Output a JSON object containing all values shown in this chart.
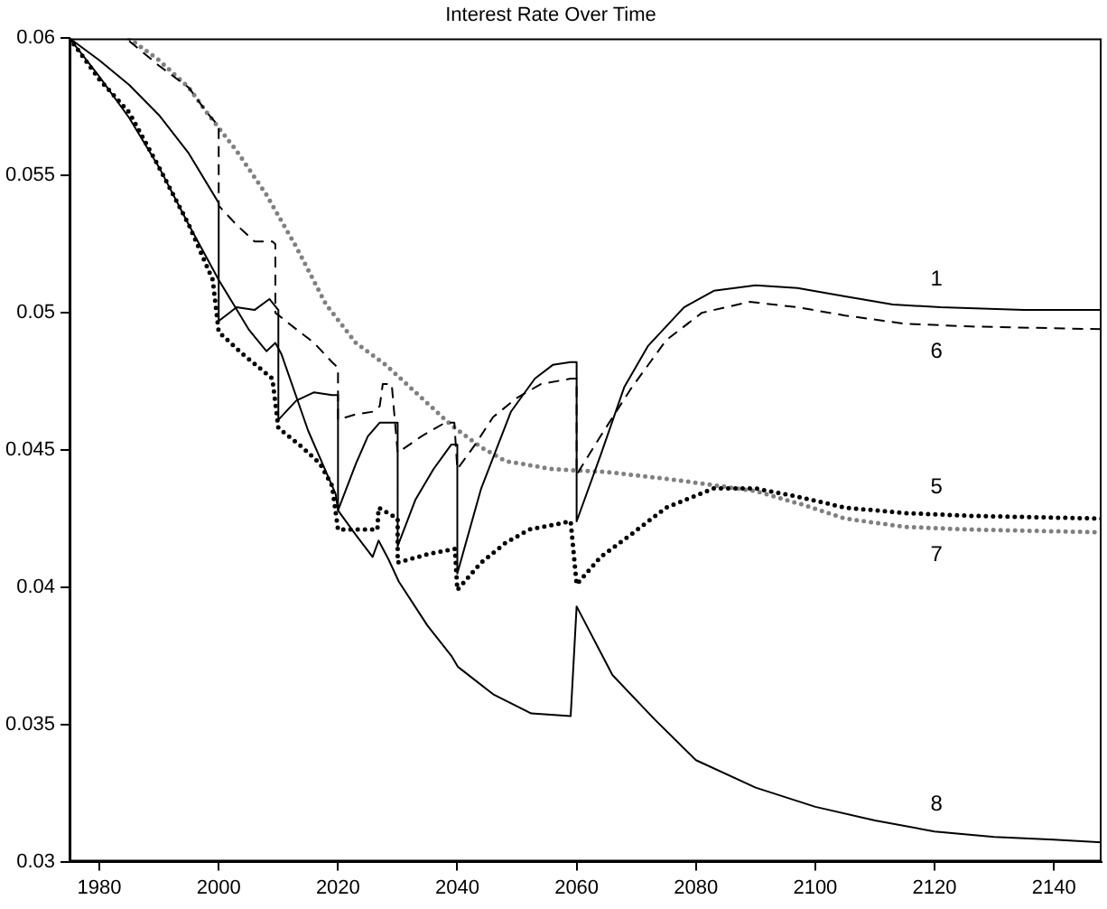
{
  "chart_data": {
    "type": "line",
    "title": "Interest Rate Over Time",
    "xlim": [
      1975,
      2148
    ],
    "xticks": [
      1980,
      2000,
      2020,
      2040,
      2060,
      2080,
      2100,
      2120,
      2140
    ],
    "ylim": [
      0.03,
      0.06
    ],
    "yticks": [
      0.03,
      0.035,
      0.04,
      0.045,
      0.05,
      0.055,
      0.06
    ],
    "grid": false,
    "legend": false,
    "marker": "none",
    "series": [
      {
        "name": "1",
        "color": "#000000",
        "line_style": "solid",
        "x": [
          1975,
          1980,
          1985,
          1990,
          1995,
          2000,
          2000,
          2003,
          2006,
          2008.5,
          2010,
          2010,
          2013,
          2016,
          2019,
          2020,
          2020,
          2023,
          2025,
          2027,
          2029,
          2030,
          2030,
          2033,
          2036,
          2039,
          2040,
          2040,
          2044,
          2049,
          2053,
          2056,
          2059,
          2060,
          2060,
          2064,
          2068,
          2072,
          2078,
          2083,
          2090,
          2097,
          2105,
          2113,
          2121,
          2135,
          2148
        ],
        "values": [
          0.06,
          0.0592,
          0.0583,
          0.0572,
          0.0558,
          0.054,
          0.0497,
          0.0502,
          0.0501,
          0.0505,
          0.0501,
          0.0461,
          0.0468,
          0.0471,
          0.047,
          0.047,
          0.0428,
          0.0445,
          0.0455,
          0.046,
          0.046,
          0.046,
          0.0415,
          0.0432,
          0.0443,
          0.0452,
          0.0452,
          0.0405,
          0.0436,
          0.0464,
          0.0476,
          0.0481,
          0.0482,
          0.0482,
          0.0424,
          0.0448,
          0.0473,
          0.0488,
          0.0502,
          0.0508,
          0.051,
          0.0509,
          0.0506,
          0.0503,
          0.0502,
          0.0501,
          0.0501
        ]
      },
      {
        "name": "6",
        "color": "#000000",
        "line_style": "dashed",
        "x": [
          1985,
          1990,
          1995,
          1998,
          2000,
          2000,
          2003,
          2006,
          2009,
          2009.5,
          2009.5,
          2013,
          2016,
          2019,
          2020,
          2020,
          2023,
          2026,
          2027,
          2027.5,
          2029,
          2030,
          2034,
          2038,
          2039.5,
          2040,
          2043,
          2046,
          2050,
          2054,
          2059,
          2060,
          2060,
          2064,
          2069,
          2075,
          2081,
          2089,
          2097,
          2105,
          2115,
          2126,
          2148
        ],
        "values": [
          0.0599,
          0.059,
          0.0582,
          0.0573,
          0.0568,
          0.0539,
          0.0532,
          0.0526,
          0.0526,
          0.0525,
          0.05,
          0.0494,
          0.0489,
          0.0482,
          0.048,
          0.0461,
          0.0463,
          0.0464,
          0.0466,
          0.0474,
          0.0474,
          0.0449,
          0.0455,
          0.046,
          0.046,
          0.0443,
          0.0452,
          0.0462,
          0.0469,
          0.0474,
          0.0476,
          0.0476,
          0.0441,
          0.0455,
          0.0472,
          0.049,
          0.05,
          0.0504,
          0.0502,
          0.0499,
          0.0496,
          0.0495,
          0.0494
        ]
      },
      {
        "name": "5",
        "color": "#000000",
        "line_style": "dotted",
        "x": [
          1975,
          1980,
          1985,
          1990,
          1995,
          1999,
          2000,
          2004,
          2009,
          2010,
          2014,
          2017,
          2019,
          2020,
          2026.6,
          2026.8,
          2030,
          2030,
          2035,
          2039.6,
          2040,
          2044,
          2048,
          2052,
          2059,
          2060,
          2064,
          2069,
          2075,
          2083,
          2090,
          2097,
          2105,
          2115,
          2126,
          2148
        ],
        "values": [
          0.06,
          0.0585,
          0.0573,
          0.0553,
          0.0532,
          0.0512,
          0.0493,
          0.0485,
          0.0476,
          0.0458,
          0.0451,
          0.0445,
          0.0437,
          0.0421,
          0.0421,
          0.0429,
          0.0425,
          0.0409,
          0.0412,
          0.0414,
          0.0399,
          0.0409,
          0.0416,
          0.0421,
          0.0424,
          0.0401,
          0.0411,
          0.0419,
          0.0429,
          0.0436,
          0.0436,
          0.0433,
          0.0429,
          0.0427,
          0.0426,
          0.0425
        ]
      },
      {
        "name": "7",
        "color": "#808080",
        "line_style": "dotted",
        "x": [
          1985,
          1990,
          1995,
          1998,
          2003,
          2008,
          2013,
          2018,
          2023,
          2028,
          2033,
          2039,
          2044,
          2048,
          2056,
          2065,
          2077,
          2090,
          2098,
          2105,
          2115,
          2126,
          2148
        ],
        "values": [
          0.06,
          0.0592,
          0.0582,
          0.0573,
          0.0559,
          0.0543,
          0.0524,
          0.0503,
          0.0489,
          0.0481,
          0.0471,
          0.0459,
          0.0451,
          0.0446,
          0.0443,
          0.0442,
          0.0439,
          0.0435,
          0.043,
          0.0425,
          0.0422,
          0.0421,
          0.042
        ]
      },
      {
        "name": "8",
        "color": "#000000",
        "line_style": "solid",
        "x": [
          1975,
          1980,
          1985,
          1990,
          1995,
          2000,
          2005,
          2008,
          2009.5,
          2010.5,
          2015,
          2019.6,
          2020,
          2023,
          2025.8,
          2026.8,
          2028.5,
          2030.2,
          2035,
          2039,
          2040.1,
          2046,
          2052.4,
          2059,
          2060,
          2066,
          2073,
          2080,
          2090,
          2100,
          2110,
          2120,
          2130,
          2140,
          2148
        ],
        "values": [
          0.06,
          0.0586,
          0.0571,
          0.0553,
          0.0532,
          0.0512,
          0.0494,
          0.0486,
          0.0489,
          0.0485,
          0.0457,
          0.0434,
          0.0428,
          0.0419,
          0.0411,
          0.0417,
          0.041,
          0.0402,
          0.0386,
          0.0375,
          0.0371,
          0.0361,
          0.0354,
          0.0353,
          0.0393,
          0.0368,
          0.0352,
          0.0337,
          0.0327,
          0.032,
          0.0315,
          0.0311,
          0.0309,
          0.0308,
          0.0307
        ]
      }
    ]
  }
}
